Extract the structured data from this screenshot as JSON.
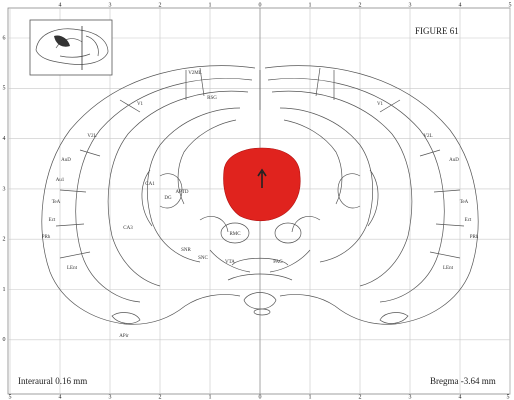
{
  "figure": {
    "title": "FIGURE 61",
    "interaural": "Interaural 0.16 mm",
    "bregma": "Bregma -3.64 mm"
  },
  "axes": {
    "top": [
      "4",
      "3",
      "2",
      "1",
      "0",
      "1",
      "2",
      "3",
      "4",
      "5"
    ],
    "left": [
      "6",
      "5",
      "4",
      "3",
      "2",
      "1",
      "0"
    ],
    "bottom": [
      "5",
      "4",
      "3",
      "2",
      "1",
      "0",
      "1",
      "2",
      "3",
      "4",
      "5"
    ]
  },
  "regions": {
    "left": [
      "V2ML",
      "V1",
      "V2L",
      "AuD",
      "Au1",
      "TeA",
      "Ect",
      "PRh",
      "LEnt",
      "APir",
      "CA1",
      "DG",
      "CA3",
      "SNR",
      "SNC",
      "VTA",
      "RMC",
      "APTD"
    ],
    "right": [
      "V1",
      "V2L",
      "AuD",
      "TeA",
      "Ect",
      "PRh",
      "LEnt",
      "RSG",
      "PAG"
    ]
  }
}
